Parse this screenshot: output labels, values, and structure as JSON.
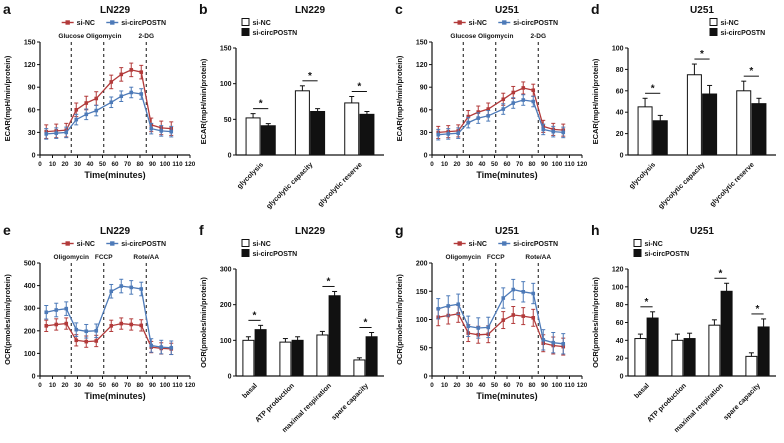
{
  "annotations": {
    "significance_marker": "*"
  },
  "chart_data": [
    {
      "letter": "a",
      "type": "line",
      "title": "LN229",
      "xlabel": "Time(minutes)",
      "ylabel": "ECAR(mpH/min/protein)",
      "xlim": [
        0,
        120
      ],
      "xticks": [
        0,
        10,
        20,
        30,
        40,
        50,
        60,
        70,
        80,
        90,
        100,
        110,
        120
      ],
      "ylim": [
        0,
        150
      ],
      "yticks": [
        0,
        30,
        60,
        90,
        120,
        150
      ],
      "vlines": [
        {
          "x": 25,
          "label": "Glucose"
        },
        {
          "x": 51,
          "label": "Oligomycin"
        },
        {
          "x": 85,
          "label": "2-DG"
        }
      ],
      "x": [
        5,
        13,
        21,
        29,
        37,
        45,
        57,
        65,
        73,
        81,
        89,
        97,
        105
      ],
      "series": [
        {
          "name": "si-NC",
          "color": "#b23a3a",
          "err": 9,
          "values": [
            31,
            32,
            33,
            60,
            69,
            75,
            97,
            107,
            113,
            110,
            40,
            36,
            35
          ]
        },
        {
          "name": "si-circPOSTN",
          "color": "#4d7ab8",
          "err": 7,
          "values": [
            28,
            29,
            30,
            47,
            54,
            59,
            70,
            78,
            83,
            81,
            35,
            32,
            31
          ]
        }
      ]
    },
    {
      "letter": "b",
      "type": "bar",
      "title": "LN229",
      "ylabel": "ECAR(mpH/min/protein)",
      "ylim": [
        0,
        150
      ],
      "yticks": [
        0,
        50,
        100,
        150
      ],
      "categories": [
        "glycolysis",
        "glycolytic capacity",
        "glycolytic reserve"
      ],
      "legend_pos": "left",
      "sig": [
        true,
        true,
        true
      ],
      "series": [
        {
          "name": "si-NC",
          "fill": "#ffffff",
          "values": [
            52,
            90,
            73
          ],
          "err": [
            6,
            7,
            9
          ]
        },
        {
          "name": "si-circPOSTN",
          "fill": "#111111",
          "values": [
            41,
            61,
            57
          ],
          "err": [
            3,
            4,
            4
          ]
        }
      ]
    },
    {
      "letter": "c",
      "type": "line",
      "title": "U251",
      "xlabel": "Time(minutes)",
      "ylabel": "ECAR(mpH/min/protein)",
      "xlim": [
        0,
        120
      ],
      "xticks": [
        0,
        10,
        20,
        30,
        40,
        50,
        60,
        70,
        80,
        90,
        100,
        110,
        120
      ],
      "ylim": [
        0,
        150
      ],
      "yticks": [
        0,
        30,
        60,
        90,
        120,
        150
      ],
      "vlines": [
        {
          "x": 25,
          "label": "Glucose"
        },
        {
          "x": 51,
          "label": "Oligomycin"
        },
        {
          "x": 85,
          "label": "2-DG"
        }
      ],
      "x": [
        5,
        13,
        21,
        29,
        37,
        45,
        57,
        65,
        73,
        81,
        89,
        97,
        105
      ],
      "series": [
        {
          "name": "si-NC",
          "color": "#b23a3a",
          "err": 8,
          "values": [
            30,
            31,
            32,
            51,
            57,
            61,
            74,
            83,
            89,
            86,
            38,
            34,
            33
          ]
        },
        {
          "name": "si-circPOSTN",
          "color": "#4d7ab8",
          "err": 7,
          "values": [
            27,
            28,
            29,
            43,
            49,
            52,
            61,
            69,
            73,
            71,
            34,
            31,
            30
          ]
        }
      ]
    },
    {
      "letter": "d",
      "type": "bar",
      "title": "U251",
      "ylabel": "ECAR(mpH/min/protein)",
      "ylim": [
        0,
        100
      ],
      "yticks": [
        0,
        20,
        40,
        60,
        80,
        100
      ],
      "categories": [
        "glycolysis",
        "glycolytic capacity",
        "glycolytic reserve"
      ],
      "legend_pos": "right",
      "sig": [
        true,
        true,
        true
      ],
      "series": [
        {
          "name": "si-NC",
          "fill": "#ffffff",
          "values": [
            45,
            75,
            60
          ],
          "err": [
            8,
            10,
            9
          ]
        },
        {
          "name": "si-circPOSTN",
          "fill": "#111111",
          "values": [
            32,
            57,
            48
          ],
          "err": [
            5,
            8,
            5
          ]
        }
      ]
    },
    {
      "letter": "e",
      "type": "line",
      "title": "LN229",
      "xlabel": "Time(minutes)",
      "ylabel": "OCR(pmoles/min/protein)",
      "xlim": [
        0,
        120
      ],
      "xticks": [
        0,
        10,
        20,
        30,
        40,
        50,
        60,
        70,
        80,
        90,
        100,
        110,
        120
      ],
      "ylim": [
        0,
        500
      ],
      "yticks": [
        0,
        100,
        200,
        300,
        400,
        500
      ],
      "vlines": [
        {
          "x": 25,
          "label": "Oligomycin"
        },
        {
          "x": 51,
          "label": "FCCP"
        },
        {
          "x": 85,
          "label": "Rote/AA"
        }
      ],
      "x": [
        5,
        13,
        21,
        29,
        37,
        45,
        57,
        65,
        73,
        81,
        89,
        97,
        105
      ],
      "series": [
        {
          "name": "si-NC",
          "color": "#b23a3a",
          "err": 25,
          "values": [
            222,
            228,
            232,
            158,
            152,
            155,
            222,
            232,
            228,
            224,
            128,
            122,
            120
          ]
        },
        {
          "name": "si-circPOSTN",
          "color": "#4d7ab8",
          "err": 30,
          "values": [
            282,
            292,
            298,
            205,
            198,
            200,
            375,
            398,
            392,
            385,
            135,
            128,
            125
          ]
        }
      ]
    },
    {
      "letter": "f",
      "type": "bar",
      "title": "LN229",
      "ylabel": "OCR(pmoles/min/protein)",
      "ylim": [
        0,
        300
      ],
      "yticks": [
        0,
        100,
        200,
        300
      ],
      "categories": [
        "basal",
        "ATP production",
        "maximal respiration",
        "spare capacity"
      ],
      "legend_pos": "left",
      "sig": [
        true,
        false,
        true,
        true
      ],
      "series": [
        {
          "name": "si-NC",
          "fill": "#ffffff",
          "values": [
            100,
            95,
            115,
            45
          ],
          "err": [
            10,
            10,
            10,
            6
          ]
        },
        {
          "name": "si-circPOSTN",
          "fill": "#111111",
          "values": [
            130,
            100,
            225,
            110
          ],
          "err": [
            12,
            10,
            12,
            12
          ]
        }
      ]
    },
    {
      "letter": "g",
      "type": "line",
      "title": "U251",
      "xlabel": "Time(minutes)",
      "ylabel": "OCR(pmoles/min/protein)",
      "xlim": [
        0,
        120
      ],
      "xticks": [
        0,
        10,
        20,
        30,
        40,
        50,
        60,
        70,
        80,
        90,
        100,
        110,
        120
      ],
      "ylim": [
        0,
        200
      ],
      "yticks": [
        0,
        50,
        100,
        150,
        200
      ],
      "vlines": [
        {
          "x": 25,
          "label": "Oligomycin"
        },
        {
          "x": 51,
          "label": "FCCP"
        },
        {
          "x": 85,
          "label": "Rote/AA"
        }
      ],
      "x": [
        5,
        13,
        21,
        29,
        37,
        45,
        57,
        65,
        73,
        81,
        89,
        97,
        105
      ],
      "series": [
        {
          "name": "si-NC",
          "color": "#b23a3a",
          "err": 15,
          "values": [
            104,
            107,
            110,
            76,
            73,
            74,
            99,
            108,
            106,
            103,
            58,
            54,
            52
          ]
        },
        {
          "name": "si-circPOSTN",
          "color": "#4d7ab8",
          "err": 18,
          "values": [
            119,
            124,
            127,
            88,
            85,
            86,
            138,
            153,
            149,
            146,
            64,
            59,
            57
          ]
        }
      ]
    },
    {
      "letter": "h",
      "type": "bar",
      "title": "U251",
      "ylabel": "OCR(pmoles/min/protein)",
      "ylim": [
        0,
        120
      ],
      "yticks": [
        0,
        20,
        40,
        60,
        80,
        100,
        120
      ],
      "categories": [
        "basal",
        "ATP production",
        "maximal respiration",
        "spare capacity"
      ],
      "legend_pos": "left",
      "sig": [
        true,
        false,
        true,
        true
      ],
      "series": [
        {
          "name": "si-NC",
          "fill": "#ffffff",
          "values": [
            42,
            40,
            57,
            22
          ],
          "err": [
            5,
            7,
            6,
            4
          ]
        },
        {
          "name": "si-circPOSTN",
          "fill": "#111111",
          "values": [
            65,
            42,
            95,
            55
          ],
          "err": [
            7,
            6,
            9,
            9
          ]
        }
      ]
    }
  ]
}
